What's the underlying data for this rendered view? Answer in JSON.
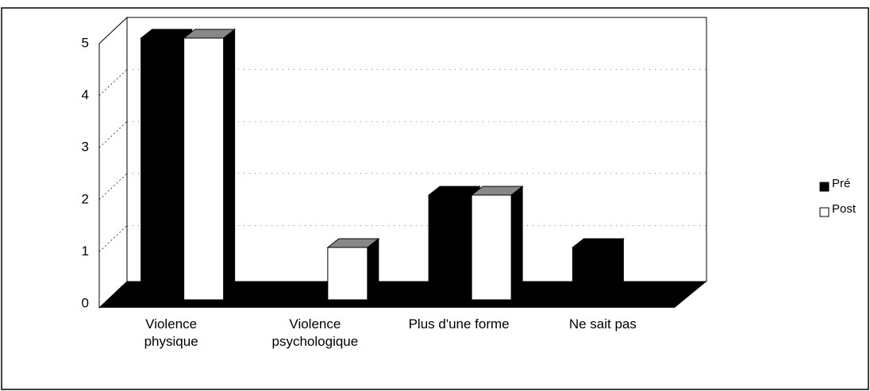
{
  "chart_data": {
    "type": "bar3d",
    "categories": [
      "Violence\nphysique",
      "Violence\npsychologique",
      "Plus d'une forme",
      "Ne sait pas"
    ],
    "series": [
      {
        "name": "Pré",
        "color": "#000000",
        "values": [
          5,
          0,
          2,
          1
        ]
      },
      {
        "name": "Post",
        "color": "#ffffff",
        "values": [
          5,
          1,
          2,
          0
        ]
      }
    ],
    "ylim": [
      0,
      5
    ],
    "yticks": [
      0,
      1,
      2,
      3,
      4,
      5
    ],
    "grid": true,
    "legend": "right"
  }
}
